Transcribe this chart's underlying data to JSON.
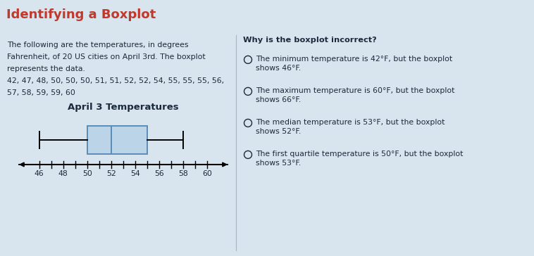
{
  "title": "Identifying a Boxplot",
  "title_color": "#c0392b",
  "title_bg_color": "#cfd9e3",
  "bg_color": "#d8e4ee",
  "left_text_lines": [
    "The following are the temperatures, in degrees",
    "Fahrenheit, of 20 US cities on April 3rd. The boxplot",
    "represents the data.",
    "42, 47, 48, 50, 50, 50, 51, 51, 52, 52, 54, 55, 55, 55, 56,",
    "57, 58, 59, 59, 60"
  ],
  "boxplot_title": "April 3 Temperatures",
  "boxplot_min": 46,
  "boxplot_q1": 50,
  "boxplot_median": 52,
  "boxplot_q3": 55,
  "boxplot_max": 58,
  "axis_min": 44.5,
  "axis_max": 61.5,
  "axis_ticks": [
    46,
    48,
    50,
    52,
    54,
    56,
    58,
    60
  ],
  "box_fill_color": "#bcd4e8",
  "box_edge_color": "#5b8db8",
  "right_question": "Why is the boxplot incorrect?",
  "right_options": [
    "The minimum temperature is 42°F, but the boxplot\nshows 46°F.",
    "The maximum temperature is 60°F, but the boxplot\nshows 66°F.",
    "The median temperature is 53°F, but the boxplot\nshows 52°F.",
    "The first quartile temperature is 50°F, but the boxplot\nshows 53°F."
  ],
  "text_color": "#1a2a3a"
}
